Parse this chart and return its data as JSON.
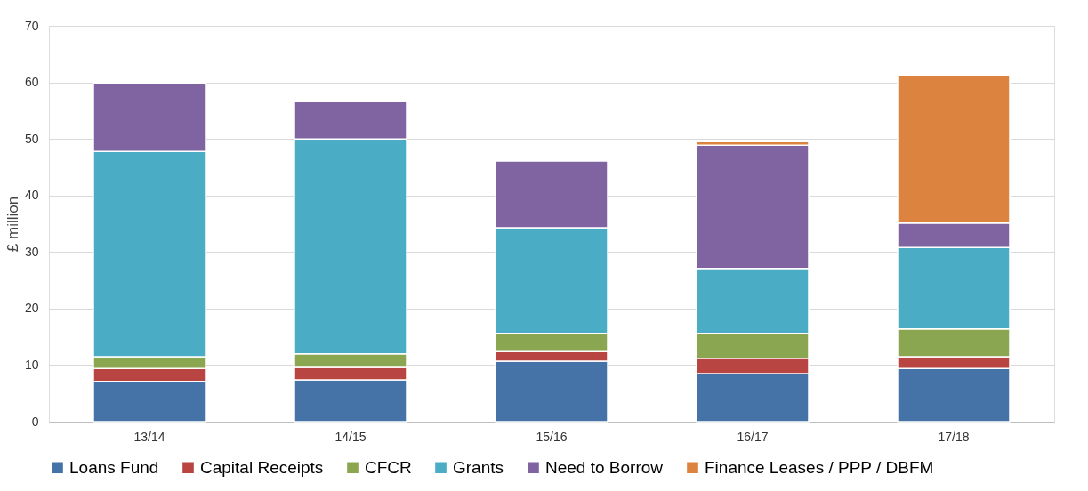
{
  "chart_data": {
    "type": "bar",
    "stacked": true,
    "ylabel": "£ million",
    "categories": [
      "13/14",
      "14/15",
      "15/16",
      "16/17",
      "17/18"
    ],
    "series": [
      {
        "name": "Loans Fund",
        "color": "#4572a7",
        "values": [
          7.1,
          7.4,
          10.7,
          8.5,
          9.4
        ]
      },
      {
        "name": "Capital Receipts",
        "color": "#b84541",
        "values": [
          2.3,
          2.2,
          1.7,
          2.7,
          2.1
        ]
      },
      {
        "name": "CFCR",
        "color": "#8ba650",
        "values": [
          2.1,
          2.4,
          3.2,
          4.4,
          4.9
        ]
      },
      {
        "name": "Grants",
        "color": "#4bacc6",
        "values": [
          36.3,
          38.0,
          18.7,
          11.5,
          14.4
        ]
      },
      {
        "name": "Need to Borrow",
        "color": "#8064a2",
        "values": [
          12.1,
          6.6,
          11.8,
          21.8,
          4.3
        ]
      },
      {
        "name": "Finance Leases / PPP / DBFM",
        "color": "#dc843f",
        "values": [
          null,
          null,
          null,
          0.6,
          26.1
        ]
      }
    ],
    "ylim": [
      0,
      70
    ],
    "yticks": [
      0,
      10,
      20,
      30,
      40,
      50,
      60,
      70
    ],
    "grid": "y",
    "legend": "bottom"
  }
}
